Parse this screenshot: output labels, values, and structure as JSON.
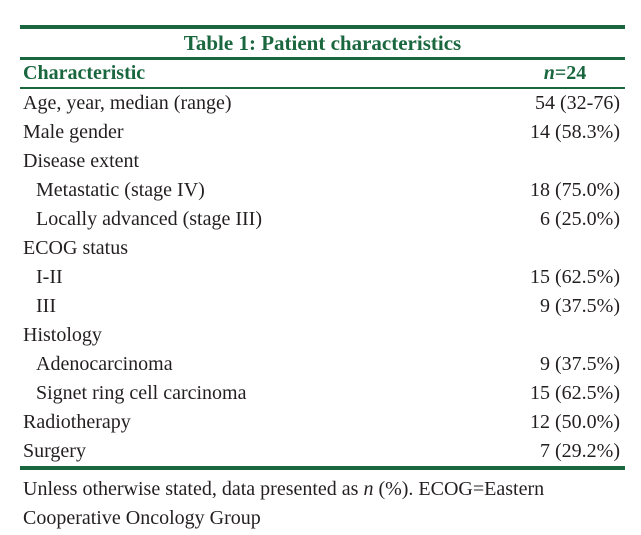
{
  "table": {
    "title": "Table 1: Patient characteristics",
    "header": {
      "characteristic_label": "Characteristic",
      "n_symbol": "n",
      "n_suffix": "=24"
    },
    "rows": [
      {
        "label": "Age, year, median (range)",
        "value": "54 (32-76)",
        "indent": false
      },
      {
        "label": "Male gender",
        "value": "14 (58.3%)",
        "indent": false
      },
      {
        "label": "Disease extent",
        "value": "",
        "indent": false
      },
      {
        "label": "Metastatic (stage IV)",
        "value": "18 (75.0%)",
        "indent": true
      },
      {
        "label": "Locally advanced (stage III)",
        "value": "6 (25.0%)",
        "indent": true
      },
      {
        "label": "ECOG status",
        "value": "",
        "indent": false
      },
      {
        "label": "I-II",
        "value": "15 (62.5%)",
        "indent": true
      },
      {
        "label": "III",
        "value": "9 (37.5%)",
        "indent": true
      },
      {
        "label": "Histology",
        "value": "",
        "indent": false
      },
      {
        "label": "Adenocarcinoma",
        "value": "9 (37.5%)",
        "indent": true
      },
      {
        "label": "Signet ring cell carcinoma",
        "value": "15 (62.5%)",
        "indent": true
      },
      {
        "label": "Radiotherapy",
        "value": "12 (50.0%)",
        "indent": false
      },
      {
        "label": "Surgery",
        "value": "7 (29.2%)",
        "indent": false
      }
    ],
    "footnote": {
      "part1": "Unless otherwise stated, data presented as ",
      "italic_n": "n",
      "part2": " (%). ECOG=Eastern Cooperative Oncology Group"
    },
    "colors": {
      "accent_green": "#1a673f",
      "body_text": "#231f20"
    }
  }
}
